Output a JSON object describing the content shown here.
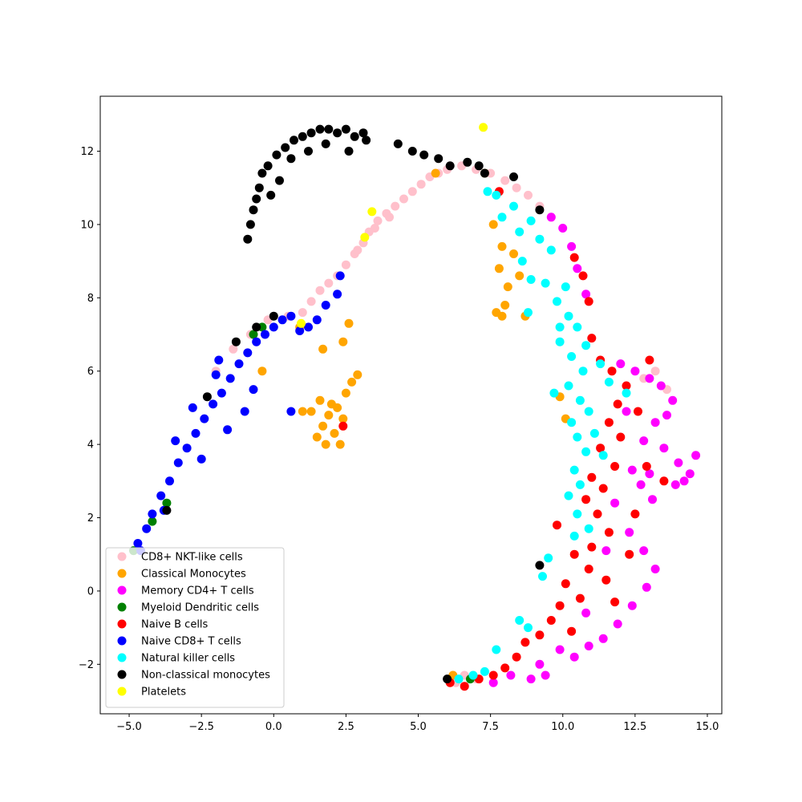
{
  "chart_data": {
    "type": "scatter",
    "title": "",
    "xlabel": "",
    "ylabel": "",
    "xlim": [
      -6.0,
      15.5
    ],
    "ylim": [
      -3.35,
      13.5
    ],
    "xticks": [
      -5.0,
      -2.5,
      0.0,
      2.5,
      5.0,
      7.5,
      10.0,
      12.5,
      15.0
    ],
    "xtick_labels": [
      "−5.0",
      "−2.5",
      "0.0",
      "2.5",
      "5.0",
      "7.5",
      "10.0",
      "12.5",
      "15.0"
    ],
    "yticks": [
      -2,
      0,
      2,
      4,
      6,
      8,
      10,
      12
    ],
    "ytick_labels": [
      "−2",
      "0",
      "2",
      "4",
      "6",
      "8",
      "10",
      "12"
    ],
    "grid": false,
    "legend_position": "lower-left",
    "series": [
      {
        "name": "CD8+ NKT-like cells",
        "color": "#ffc0cb",
        "points": [
          [
            0.5,
            7.5
          ],
          [
            1.0,
            7.6
          ],
          [
            1.3,
            7.9
          ],
          [
            1.6,
            8.2
          ],
          [
            1.9,
            8.4
          ],
          [
            2.2,
            8.6
          ],
          [
            2.5,
            8.9
          ],
          [
            2.8,
            9.2
          ],
          [
            3.1,
            9.5
          ],
          [
            3.3,
            9.8
          ],
          [
            3.6,
            10.1
          ],
          [
            3.9,
            10.3
          ],
          [
            4.2,
            10.5
          ],
          [
            4.5,
            10.7
          ],
          [
            4.8,
            10.9
          ],
          [
            5.1,
            11.1
          ],
          [
            5.4,
            11.3
          ],
          [
            5.7,
            11.4
          ],
          [
            6.0,
            11.5
          ],
          [
            6.5,
            11.6
          ],
          [
            7.0,
            11.5
          ],
          [
            7.5,
            11.4
          ],
          [
            8.0,
            11.2
          ],
          [
            8.4,
            11.0
          ],
          [
            8.8,
            10.8
          ],
          [
            9.2,
            10.5
          ],
          [
            9.6,
            10.2
          ],
          [
            -0.2,
            7.4
          ],
          [
            -0.8,
            7.0
          ],
          [
            -1.4,
            6.6
          ],
          [
            -2.0,
            6.0
          ],
          [
            12.8,
            5.8
          ],
          [
            13.2,
            6.0
          ],
          [
            13.6,
            5.5
          ],
          [
            6.3,
            -2.5
          ],
          [
            6.6,
            -2.3
          ],
          [
            7.0,
            -2.4
          ],
          [
            2.9,
            9.3
          ],
          [
            3.5,
            9.9
          ],
          [
            4.0,
            10.2
          ]
        ]
      },
      {
        "name": "Classical Monocytes",
        "color": "#ffa500",
        "points": [
          [
            1.5,
            4.2
          ],
          [
            1.7,
            4.5
          ],
          [
            1.9,
            4.8
          ],
          [
            2.0,
            5.1
          ],
          [
            2.2,
            5.0
          ],
          [
            2.4,
            4.7
          ],
          [
            2.5,
            5.4
          ],
          [
            2.7,
            5.7
          ],
          [
            2.9,
            5.9
          ],
          [
            1.6,
            5.2
          ],
          [
            1.3,
            4.9
          ],
          [
            1.0,
            4.9
          ],
          [
            2.1,
            4.3
          ],
          [
            2.3,
            4.0
          ],
          [
            1.8,
            4.0
          ],
          [
            1.7,
            6.6
          ],
          [
            2.4,
            6.8
          ],
          [
            2.6,
            7.3
          ],
          [
            7.6,
            10.0
          ],
          [
            7.9,
            9.4
          ],
          [
            7.8,
            8.8
          ],
          [
            8.1,
            8.3
          ],
          [
            8.0,
            7.8
          ],
          [
            7.7,
            7.6
          ],
          [
            8.5,
            8.6
          ],
          [
            8.7,
            7.5
          ],
          [
            5.6,
            11.4
          ],
          [
            7.3,
            11.4
          ],
          [
            0.9,
            7.2
          ],
          [
            -0.4,
            6.0
          ],
          [
            9.9,
            5.3
          ],
          [
            10.1,
            4.7
          ],
          [
            6.2,
            -2.3
          ],
          [
            7.9,
            7.5
          ],
          [
            8.3,
            9.2
          ]
        ]
      },
      {
        "name": "Memory CD4+ T cells",
        "color": "#ff00ff",
        "points": [
          [
            9.6,
            10.2
          ],
          [
            10.0,
            9.9
          ],
          [
            10.3,
            9.4
          ],
          [
            10.5,
            8.8
          ],
          [
            10.8,
            8.1
          ],
          [
            12.0,
            6.2
          ],
          [
            12.5,
            6.0
          ],
          [
            13.0,
            5.8
          ],
          [
            13.4,
            5.6
          ],
          [
            13.8,
            5.2
          ],
          [
            13.2,
            4.6
          ],
          [
            12.8,
            4.1
          ],
          [
            13.5,
            3.9
          ],
          [
            14.0,
            3.5
          ],
          [
            14.4,
            3.2
          ],
          [
            14.6,
            3.7
          ],
          [
            13.0,
            3.2
          ],
          [
            12.4,
            3.3
          ],
          [
            13.1,
            2.5
          ],
          [
            12.7,
            2.9
          ],
          [
            12.3,
            1.6
          ],
          [
            12.8,
            1.1
          ],
          [
            13.2,
            0.6
          ],
          [
            12.9,
            0.1
          ],
          [
            12.4,
            -0.4
          ],
          [
            11.9,
            -0.9
          ],
          [
            11.4,
            -1.3
          ],
          [
            10.9,
            -1.5
          ],
          [
            10.4,
            -1.8
          ],
          [
            9.9,
            -1.6
          ],
          [
            9.4,
            -2.3
          ],
          [
            8.9,
            -2.4
          ],
          [
            8.2,
            -2.3
          ],
          [
            7.6,
            -2.5
          ],
          [
            11.8,
            2.4
          ],
          [
            13.9,
            2.9
          ],
          [
            12.2,
            4.9
          ],
          [
            11.5,
            1.1
          ],
          [
            10.8,
            -0.6
          ],
          [
            9.2,
            -2.0
          ],
          [
            14.2,
            3.0
          ],
          [
            13.6,
            4.8
          ]
        ]
      },
      {
        "name": "Myeloid Dendritic cells",
        "color": "#008000",
        "points": [
          [
            -4.85,
            1.1
          ],
          [
            -4.2,
            1.9
          ],
          [
            -3.7,
            2.4
          ],
          [
            -0.7,
            7.0
          ],
          [
            -0.4,
            7.2
          ],
          [
            6.8,
            -2.4
          ]
        ]
      },
      {
        "name": "Naive B cells",
        "color": "#ff0000",
        "points": [
          [
            10.4,
            9.1
          ],
          [
            10.7,
            8.6
          ],
          [
            10.9,
            7.9
          ],
          [
            11.0,
            6.9
          ],
          [
            11.3,
            6.3
          ],
          [
            11.7,
            6.0
          ],
          [
            12.2,
            5.6
          ],
          [
            11.9,
            5.1
          ],
          [
            12.6,
            4.9
          ],
          [
            11.6,
            4.6
          ],
          [
            12.0,
            4.2
          ],
          [
            11.3,
            3.9
          ],
          [
            11.8,
            3.4
          ],
          [
            11.0,
            3.1
          ],
          [
            11.4,
            2.8
          ],
          [
            10.8,
            2.5
          ],
          [
            11.2,
            2.1
          ],
          [
            11.6,
            1.6
          ],
          [
            11.0,
            1.2
          ],
          [
            10.4,
            1.0
          ],
          [
            10.9,
            0.6
          ],
          [
            11.5,
            0.3
          ],
          [
            10.1,
            0.2
          ],
          [
            10.6,
            -0.2
          ],
          [
            9.9,
            -0.4
          ],
          [
            9.6,
            -0.8
          ],
          [
            10.3,
            -1.1
          ],
          [
            9.2,
            -1.2
          ],
          [
            8.7,
            -1.4
          ],
          [
            8.4,
            -1.8
          ],
          [
            8.0,
            -2.1
          ],
          [
            7.6,
            -2.3
          ],
          [
            7.1,
            -2.4
          ],
          [
            6.6,
            -2.6
          ],
          [
            6.1,
            -2.5
          ],
          [
            12.9,
            3.4
          ],
          [
            13.5,
            3.0
          ],
          [
            13.0,
            6.3
          ],
          [
            12.3,
            1.0
          ],
          [
            11.8,
            -0.3
          ],
          [
            2.4,
            4.5
          ],
          [
            7.8,
            10.9
          ],
          [
            9.8,
            1.8
          ],
          [
            12.5,
            2.1
          ]
        ]
      },
      {
        "name": "Naive CD8+ T cells",
        "color": "#0000ff",
        "points": [
          [
            -4.7,
            1.3
          ],
          [
            -4.4,
            1.7
          ],
          [
            -4.2,
            2.1
          ],
          [
            -3.9,
            2.6
          ],
          [
            -3.6,
            3.0
          ],
          [
            -3.3,
            3.5
          ],
          [
            -3.0,
            3.9
          ],
          [
            -2.7,
            4.3
          ],
          [
            -2.4,
            4.7
          ],
          [
            -2.1,
            5.1
          ],
          [
            -1.8,
            5.4
          ],
          [
            -1.5,
            5.8
          ],
          [
            -1.2,
            6.2
          ],
          [
            -0.9,
            6.5
          ],
          [
            -0.6,
            6.8
          ],
          [
            -0.3,
            7.0
          ],
          [
            0.0,
            7.2
          ],
          [
            0.3,
            7.4
          ],
          [
            0.6,
            7.5
          ],
          [
            -2.8,
            5.0
          ],
          [
            -3.4,
            4.1
          ],
          [
            -2.0,
            5.9
          ],
          [
            -1.0,
            4.9
          ],
          [
            -0.7,
            5.5
          ],
          [
            -1.6,
            4.4
          ],
          [
            0.6,
            4.9
          ],
          [
            0.9,
            7.1
          ],
          [
            1.2,
            7.2
          ],
          [
            1.5,
            7.4
          ],
          [
            2.2,
            8.1
          ],
          [
            2.3,
            8.6
          ],
          [
            1.8,
            7.8
          ],
          [
            -3.8,
            2.2
          ],
          [
            -4.6,
            1.1
          ],
          [
            -2.5,
            3.6
          ],
          [
            -1.9,
            6.3
          ]
        ]
      },
      {
        "name": "Natural killer  cells",
        "color": "#00ffff",
        "points": [
          [
            7.7,
            10.8
          ],
          [
            7.9,
            10.2
          ],
          [
            8.3,
            10.5
          ],
          [
            8.5,
            9.8
          ],
          [
            8.9,
            10.1
          ],
          [
            9.2,
            9.6
          ],
          [
            9.6,
            9.3
          ],
          [
            8.6,
            9.0
          ],
          [
            8.9,
            8.5
          ],
          [
            9.4,
            8.4
          ],
          [
            9.8,
            7.9
          ],
          [
            10.2,
            7.5
          ],
          [
            10.5,
            7.2
          ],
          [
            9.9,
            6.8
          ],
          [
            10.3,
            6.4
          ],
          [
            10.7,
            6.0
          ],
          [
            10.2,
            5.6
          ],
          [
            10.6,
            5.2
          ],
          [
            10.9,
            4.9
          ],
          [
            10.3,
            4.6
          ],
          [
            10.5,
            4.2
          ],
          [
            10.8,
            3.8
          ],
          [
            10.4,
            3.3
          ],
          [
            10.6,
            2.9
          ],
          [
            10.2,
            2.6
          ],
          [
            10.5,
            2.1
          ],
          [
            10.9,
            1.7
          ],
          [
            10.4,
            1.5
          ],
          [
            11.3,
            6.2
          ],
          [
            11.6,
            5.7
          ],
          [
            11.1,
            4.3
          ],
          [
            9.5,
            0.9
          ],
          [
            9.3,
            0.4
          ],
          [
            8.5,
            -0.8
          ],
          [
            8.8,
            -1.0
          ],
          [
            7.7,
            -1.6
          ],
          [
            7.3,
            -2.2
          ],
          [
            6.9,
            -2.3
          ],
          [
            6.4,
            -2.4
          ],
          [
            9.9,
            7.2
          ],
          [
            10.1,
            8.3
          ],
          [
            11.4,
            3.7
          ],
          [
            12.2,
            5.4
          ],
          [
            8.8,
            7.6
          ],
          [
            7.4,
            10.9
          ],
          [
            9.7,
            5.4
          ],
          [
            10.8,
            6.7
          ]
        ]
      },
      {
        "name": "Non-classical monocytes",
        "color": "#000000",
        "points": [
          [
            -0.9,
            9.6
          ],
          [
            -0.8,
            10.0
          ],
          [
            -0.7,
            10.4
          ],
          [
            -0.6,
            10.7
          ],
          [
            -0.5,
            11.0
          ],
          [
            -0.4,
            11.4
          ],
          [
            -0.2,
            11.6
          ],
          [
            0.1,
            11.9
          ],
          [
            0.4,
            12.1
          ],
          [
            0.7,
            12.3
          ],
          [
            1.0,
            12.4
          ],
          [
            1.3,
            12.5
          ],
          [
            1.6,
            12.6
          ],
          [
            1.9,
            12.6
          ],
          [
            2.2,
            12.5
          ],
          [
            2.5,
            12.6
          ],
          [
            2.8,
            12.4
          ],
          [
            3.1,
            12.5
          ],
          [
            3.2,
            12.3
          ],
          [
            0.2,
            11.2
          ],
          [
            -0.1,
            10.8
          ],
          [
            0.6,
            11.8
          ],
          [
            1.2,
            12.0
          ],
          [
            1.8,
            12.2
          ],
          [
            2.6,
            12.0
          ],
          [
            4.3,
            12.2
          ],
          [
            4.8,
            12.0
          ],
          [
            5.2,
            11.9
          ],
          [
            5.7,
            11.8
          ],
          [
            6.1,
            11.6
          ],
          [
            6.7,
            11.7
          ],
          [
            7.1,
            11.6
          ],
          [
            7.3,
            11.4
          ],
          [
            8.3,
            11.3
          ],
          [
            -0.6,
            7.2
          ],
          [
            -1.3,
            6.8
          ],
          [
            -2.3,
            5.3
          ],
          [
            -3.7,
            2.2
          ],
          [
            9.2,
            0.7
          ],
          [
            6.0,
            -2.4
          ],
          [
            9.2,
            10.4
          ],
          [
            0.0,
            7.5
          ]
        ]
      },
      {
        "name": "Platelets",
        "color": "#ffff00",
        "points": [
          [
            7.25,
            12.65
          ],
          [
            3.4,
            10.35
          ],
          [
            3.15,
            9.65
          ],
          [
            0.95,
            7.3
          ]
        ]
      }
    ]
  }
}
